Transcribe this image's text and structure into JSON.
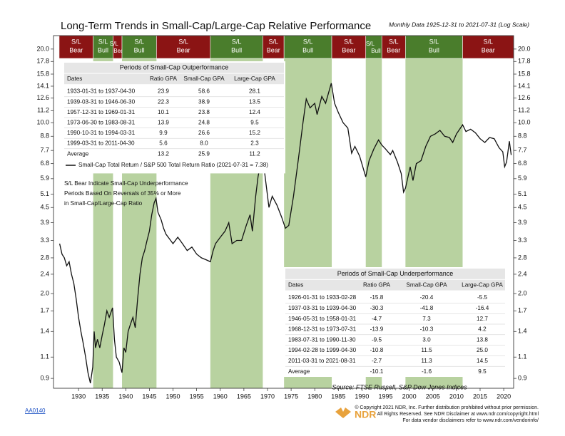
{
  "chart_data": {
    "type": "line",
    "title": "Long-Term Trends in Small-Cap/Large-Cap Relative Performance",
    "subtitle": "Monthly Data 1925-12-31 to 2021-07-31 (Log Scale)",
    "log_scale": true,
    "xlim": [
      1924.7,
      2022.1
    ],
    "xticks": [
      1930,
      1935,
      1940,
      1945,
      1950,
      1955,
      1960,
      1965,
      1970,
      1975,
      1980,
      1985,
      1990,
      1995,
      2000,
      2005,
      2010,
      2015,
      2020
    ],
    "ylim": [
      0.82,
      22.7
    ],
    "yticks": [
      {
        "value": 20,
        "label": "20.0"
      },
      17.8,
      15.8,
      14.1,
      12.6,
      11.2,
      {
        "value": 10,
        "label": "10.0"
      },
      8.8,
      7.7,
      6.8,
      5.9,
      5.1,
      4.5,
      3.9,
      3.3,
      2.8,
      2.4,
      {
        "value": 2,
        "label": "2.0"
      },
      1.7,
      1.4,
      1.1,
      0.9
    ],
    "x": [
      1926.0,
      1926.5,
      1927.0,
      1927.5,
      1928.0,
      1928.5,
      1929.0,
      1929.5,
      1930.0,
      1930.5,
      1931.0,
      1931.5,
      1932.0,
      1932.5,
      1933.0,
      1933.3,
      1933.6,
      1934.0,
      1934.5,
      1935.0,
      1935.5,
      1936.0,
      1936.5,
      1937.2,
      1937.6,
      1938.0,
      1938.6,
      1939.2,
      1939.6,
      1940.0,
      1940.5,
      1941.0,
      1941.5,
      1942.0,
      1942.5,
      1943.0,
      1943.5,
      1944.0,
      1944.5,
      1945.0,
      1945.5,
      1946.0,
      1946.4,
      1946.8,
      1947.5,
      1948.0,
      1948.5,
      1949.5,
      1950.0,
      1951.0,
      1952.0,
      1953.0,
      1954.0,
      1955.0,
      1956.0,
      1957.0,
      1957.9,
      1958.5,
      1959.0,
      1960.0,
      1961.0,
      1961.8,
      1962.5,
      1963.5,
      1964.5,
      1965.5,
      1966.3,
      1966.8,
      1967.5,
      1968.0,
      1968.9,
      1969.5,
      1970.3,
      1971.0,
      1972.0,
      1973.0,
      1973.8,
      1974.5,
      1975.5,
      1976.5,
      1977.5,
      1978.2,
      1979.0,
      1980.0,
      1980.5,
      1981.5,
      1982.3,
      1983.5,
      1984.2,
      1985.0,
      1986.0,
      1987.0,
      1987.8,
      1988.5,
      1989.5,
      1990.8,
      1991.5,
      1992.5,
      1993.5,
      1994.2,
      1995.0,
      1996.0,
      1996.5,
      1997.5,
      1998.3,
      1998.8,
      1999.2,
      2000.2,
      2000.8,
      2001.5,
      2002.5,
      2003.5,
      2004.5,
      2005.5,
      2006.5,
      2007.5,
      2008.5,
      2009.2,
      2010.0,
      2011.3,
      2012.0,
      2013.0,
      2014.0,
      2015.0,
      2016.0,
      2017.0,
      2018.0,
      2019.0,
      2019.8,
      2020.2,
      2020.6,
      2021.2,
      2021.58
    ],
    "series": [
      {
        "name": "Small-Cap Total Return / S&P 500 Total Return Ratio (2021-07-31 = 7.38)",
        "color": "#111111",
        "values": [
          3.2,
          2.9,
          2.8,
          2.6,
          2.7,
          2.4,
          2.2,
          1.9,
          1.6,
          1.4,
          1.25,
          1.1,
          0.95,
          0.86,
          1.0,
          1.4,
          1.2,
          1.3,
          1.2,
          1.35,
          1.5,
          1.7,
          1.6,
          1.75,
          1.3,
          1.1,
          1.05,
          0.95,
          1.2,
          1.15,
          1.4,
          1.5,
          1.6,
          1.45,
          1.9,
          2.4,
          2.8,
          3.0,
          3.3,
          3.6,
          4.2,
          4.7,
          4.9,
          4.3,
          4.0,
          3.7,
          3.5,
          3.3,
          3.2,
          3.4,
          3.2,
          3.0,
          3.1,
          2.9,
          2.8,
          2.75,
          2.7,
          3.0,
          3.2,
          3.4,
          3.6,
          3.9,
          3.2,
          3.3,
          3.3,
          3.8,
          4.2,
          3.6,
          5.0,
          6.0,
          7.5,
          6.0,
          4.5,
          5.0,
          4.6,
          4.1,
          3.7,
          3.8,
          5.0,
          7.0,
          10.0,
          12.5,
          11.5,
          12.0,
          10.8,
          12.8,
          12.0,
          14.5,
          12.0,
          11.0,
          10.0,
          9.5,
          7.5,
          8.0,
          7.3,
          6.0,
          7.0,
          7.8,
          8.5,
          8.1,
          7.8,
          7.4,
          7.7,
          6.9,
          6.2,
          5.2,
          5.4,
          6.6,
          5.8,
          6.8,
          7.0,
          8.0,
          8.8,
          9.0,
          9.3,
          8.8,
          8.7,
          8.3,
          9.0,
          9.8,
          9.2,
          9.4,
          9.1,
          8.6,
          8.3,
          8.7,
          8.6,
          7.9,
          7.6,
          6.6,
          6.9,
          8.4,
          7.38
        ]
      }
    ],
    "regimes": [
      {
        "top": "S/L",
        "bottom": "Bear",
        "start": 1925.9,
        "end": 1933.1,
        "color": "#8b1414"
      },
      {
        "top": "S/L",
        "bottom": "Bull",
        "start": 1933.1,
        "end": 1937.3,
        "color": "#4a7d2c",
        "shade": "#b8d2a0"
      },
      {
        "top": "S/L",
        "bottom": "Bear",
        "start": 1937.3,
        "end": 1939.2,
        "color": "#8b1414"
      },
      {
        "top": "S/L",
        "bottom": "Bull",
        "start": 1939.2,
        "end": 1946.5,
        "color": "#4a7d2c",
        "shade": "#b8d2a0"
      },
      {
        "top": "S/L",
        "bottom": "Bear",
        "start": 1946.5,
        "end": 1957.9,
        "color": "#8b1414"
      },
      {
        "top": "S/L",
        "bottom": "Bull",
        "start": 1957.9,
        "end": 1969.0,
        "color": "#4a7d2c",
        "shade": "#b8d2a0"
      },
      {
        "top": "S/L",
        "bottom": "Bear",
        "start": 1969.0,
        "end": 1973.5,
        "color": "#8b1414"
      },
      {
        "top": "S/L",
        "bottom": "Bull",
        "start": 1973.5,
        "end": 1983.6,
        "color": "#4a7d2c",
        "shade": "#b8d2a0"
      },
      {
        "top": "S/L",
        "bottom": "Bear",
        "start": 1983.6,
        "end": 1990.8,
        "color": "#8b1414"
      },
      {
        "top": "S/L",
        "bottom": "Bull",
        "start": 1990.8,
        "end": 1994.2,
        "color": "#4a7d2c",
        "shade": "#b8d2a0"
      },
      {
        "top": "S/L",
        "bottom": "Bear",
        "start": 1994.2,
        "end": 1999.2,
        "color": "#8b1414"
      },
      {
        "top": "S/L",
        "bottom": "Bull",
        "start": 1999.2,
        "end": 2011.3,
        "color": "#4a7d2c",
        "shade": "#b8d2a0"
      },
      {
        "top": "S/L",
        "bottom": "Bear",
        "start": 2011.3,
        "end": 2022.1,
        "color": "#8b1414"
      }
    ],
    "out_table": {
      "title": "Periods of Small-Cap Outperformance",
      "header": [
        "Dates",
        "Ratio GPA",
        "Small-Cap GPA",
        "Large-Cap GPA"
      ],
      "rows": [
        [
          "1933-01-31 to 1937-04-30",
          "23.9",
          "58.6",
          "28.1"
        ],
        [
          "1939-03-31 to 1946-06-30",
          "22.3",
          "38.9",
          "13.5"
        ],
        [
          "1957-12-31 to 1969-01-31",
          "10.1",
          "23.8",
          "12.4"
        ],
        [
          "1973-06-30 to 1983-08-31",
          "13.9",
          "24.8",
          "9.5"
        ],
        [
          "1990-10-31 to 1994-03-31",
          "9.9",
          "26.6",
          "15.2"
        ],
        [
          "1999-03-31 to 2011-04-30",
          "5.6",
          "8.0",
          "2.3"
        ],
        [
          "Average",
          "13.2",
          "25.9",
          "11.2"
        ]
      ]
    },
    "under_table": {
      "title": "Periods of Small-Cap Underperformance",
      "header": [
        "Dates",
        "Ratio GPA",
        "Small-Cap GPA",
        "Large-Cap GPA"
      ],
      "rows": [
        [
          "1926-01-31 to 1933-02-28",
          "-15.8",
          "-20.4",
          "-5.5"
        ],
        [
          "1937-03-31 to 1939-04-30",
          "-30.3",
          "-41.8",
          "-16.4"
        ],
        [
          "1946-05-31 to 1958-01-31",
          "-4.7",
          "7.3",
          "12.7"
        ],
        [
          "1968-12-31 to 1973-07-31",
          "-13.9",
          "-10.3",
          "4.2"
        ],
        [
          "1983-07-31 to 1990-11-30",
          "-9.5",
          "3.0",
          "13.8"
        ],
        [
          "1994-02-28 to 1999-04-30",
          "-10.8",
          "11.5",
          "25.0"
        ],
        [
          "2011-03-31 to 2021-08-31",
          "-2.7",
          "11.3",
          "14.5"
        ],
        [
          "Average",
          "-10.1",
          "-1.6",
          "9.5"
        ]
      ]
    },
    "annotation": [
      "S/L Bear Indicate Small-Cap Underperformance",
      "Periods Based On Reversals of 35% or More",
      "in Small-Cap/Large-Cap Ratio"
    ],
    "source": "Source:  FTSE Russell, S&P Dow Jones Indices",
    "code": "AA0140",
    "logo": "NDR",
    "footer": [
      "© Copyright 2021 NDR, Inc. Further distribution prohibited without prior permission.",
      "All Rights Reserved. See NDR Disclaimer at www.ndr.com/copyright.html",
      "For data vendor disclaimers refer to www.ndr.com/vendorinfo/"
    ]
  }
}
